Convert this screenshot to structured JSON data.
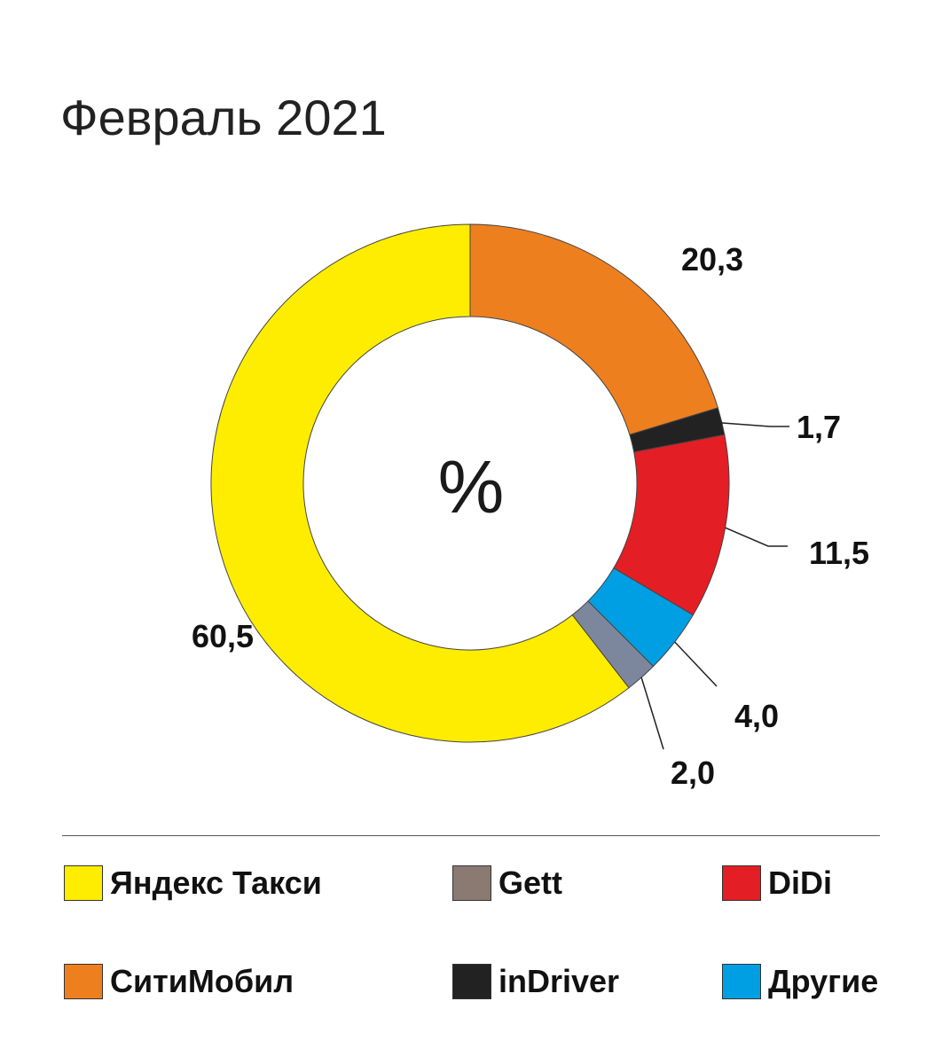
{
  "colors": {
    "yandex": "#FFED00",
    "citymobil": "#EE7F1F",
    "indriver": "#222222",
    "didi": "#E31E24",
    "other": "#009FE3",
    "gett": "#7C879D",
    "gett_legend": "#8B7A72"
  },
  "chart_data": {
    "type": "pie",
    "title": "Февраль 2021",
    "center_label": "%",
    "slices": [
      {
        "label": "СитиМобил",
        "value": 20.3,
        "display": "20,3",
        "color": "#EE7F1F"
      },
      {
        "label": "inDriver",
        "value": 1.7,
        "display": "1,7",
        "color": "#222222"
      },
      {
        "label": "DiDi",
        "value": 11.5,
        "display": "11,5",
        "color": "#E31E24"
      },
      {
        "label": "Другие",
        "value": 4.0,
        "display": "4,0",
        "color": "#009FE3"
      },
      {
        "label": "Gett",
        "value": 2.0,
        "display": "2,0",
        "color": "#7C879D"
      },
      {
        "label": "Яндекс Такси",
        "value": 60.5,
        "display": "60,5",
        "color": "#FFED00"
      }
    ]
  },
  "legend": [
    {
      "label": "Яндекс Такси",
      "color": "#FFED00"
    },
    {
      "label": "Gett",
      "color": "#8B7A72"
    },
    {
      "label": "DiDi",
      "color": "#E31E24"
    },
    {
      "label": "СитиМобил",
      "color": "#EE7F1F"
    },
    {
      "label": "inDriver",
      "color": "#222222"
    },
    {
      "label": "Другие",
      "color": "#009FE3"
    }
  ]
}
